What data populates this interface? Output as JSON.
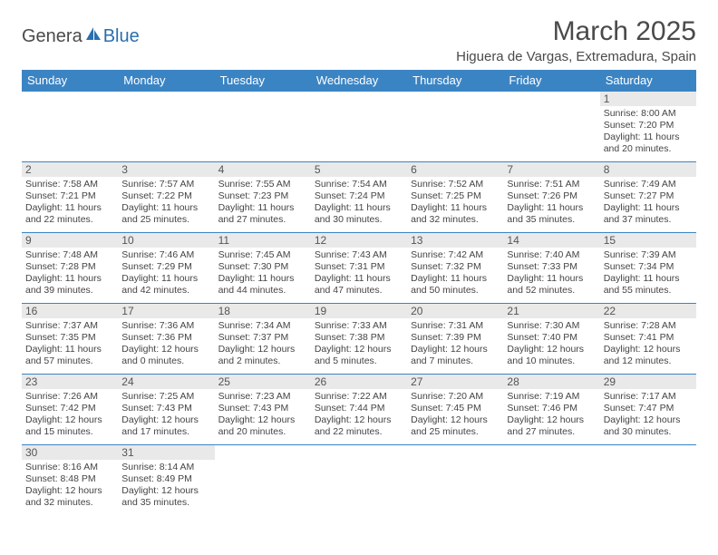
{
  "logo": {
    "part1": "Genera",
    "part2": "Blue"
  },
  "title": "March 2025",
  "location": "Higuera de Vargas, Extremadura, Spain",
  "colors": {
    "header_bg": "#3b84c4",
    "header_text": "#ffffff",
    "daynum_bg": "#e9e9e9",
    "border": "#3b84c4",
    "text": "#444444",
    "logo_gray": "#4a4a4a",
    "logo_blue": "#2a6fb0"
  },
  "day_headers": [
    "Sunday",
    "Monday",
    "Tuesday",
    "Wednesday",
    "Thursday",
    "Friday",
    "Saturday"
  ],
  "weeks": [
    [
      null,
      null,
      null,
      null,
      null,
      null,
      {
        "n": "1",
        "sr": "Sunrise: 8:00 AM",
        "ss": "Sunset: 7:20 PM",
        "dl": "Daylight: 11 hours and 20 minutes."
      }
    ],
    [
      {
        "n": "2",
        "sr": "Sunrise: 7:58 AM",
        "ss": "Sunset: 7:21 PM",
        "dl": "Daylight: 11 hours and 22 minutes."
      },
      {
        "n": "3",
        "sr": "Sunrise: 7:57 AM",
        "ss": "Sunset: 7:22 PM",
        "dl": "Daylight: 11 hours and 25 minutes."
      },
      {
        "n": "4",
        "sr": "Sunrise: 7:55 AM",
        "ss": "Sunset: 7:23 PM",
        "dl": "Daylight: 11 hours and 27 minutes."
      },
      {
        "n": "5",
        "sr": "Sunrise: 7:54 AM",
        "ss": "Sunset: 7:24 PM",
        "dl": "Daylight: 11 hours and 30 minutes."
      },
      {
        "n": "6",
        "sr": "Sunrise: 7:52 AM",
        "ss": "Sunset: 7:25 PM",
        "dl": "Daylight: 11 hours and 32 minutes."
      },
      {
        "n": "7",
        "sr": "Sunrise: 7:51 AM",
        "ss": "Sunset: 7:26 PM",
        "dl": "Daylight: 11 hours and 35 minutes."
      },
      {
        "n": "8",
        "sr": "Sunrise: 7:49 AM",
        "ss": "Sunset: 7:27 PM",
        "dl": "Daylight: 11 hours and 37 minutes."
      }
    ],
    [
      {
        "n": "9",
        "sr": "Sunrise: 7:48 AM",
        "ss": "Sunset: 7:28 PM",
        "dl": "Daylight: 11 hours and 39 minutes."
      },
      {
        "n": "10",
        "sr": "Sunrise: 7:46 AM",
        "ss": "Sunset: 7:29 PM",
        "dl": "Daylight: 11 hours and 42 minutes."
      },
      {
        "n": "11",
        "sr": "Sunrise: 7:45 AM",
        "ss": "Sunset: 7:30 PM",
        "dl": "Daylight: 11 hours and 44 minutes."
      },
      {
        "n": "12",
        "sr": "Sunrise: 7:43 AM",
        "ss": "Sunset: 7:31 PM",
        "dl": "Daylight: 11 hours and 47 minutes."
      },
      {
        "n": "13",
        "sr": "Sunrise: 7:42 AM",
        "ss": "Sunset: 7:32 PM",
        "dl": "Daylight: 11 hours and 50 minutes."
      },
      {
        "n": "14",
        "sr": "Sunrise: 7:40 AM",
        "ss": "Sunset: 7:33 PM",
        "dl": "Daylight: 11 hours and 52 minutes."
      },
      {
        "n": "15",
        "sr": "Sunrise: 7:39 AM",
        "ss": "Sunset: 7:34 PM",
        "dl": "Daylight: 11 hours and 55 minutes."
      }
    ],
    [
      {
        "n": "16",
        "sr": "Sunrise: 7:37 AM",
        "ss": "Sunset: 7:35 PM",
        "dl": "Daylight: 11 hours and 57 minutes."
      },
      {
        "n": "17",
        "sr": "Sunrise: 7:36 AM",
        "ss": "Sunset: 7:36 PM",
        "dl": "Daylight: 12 hours and 0 minutes."
      },
      {
        "n": "18",
        "sr": "Sunrise: 7:34 AM",
        "ss": "Sunset: 7:37 PM",
        "dl": "Daylight: 12 hours and 2 minutes."
      },
      {
        "n": "19",
        "sr": "Sunrise: 7:33 AM",
        "ss": "Sunset: 7:38 PM",
        "dl": "Daylight: 12 hours and 5 minutes."
      },
      {
        "n": "20",
        "sr": "Sunrise: 7:31 AM",
        "ss": "Sunset: 7:39 PM",
        "dl": "Daylight: 12 hours and 7 minutes."
      },
      {
        "n": "21",
        "sr": "Sunrise: 7:30 AM",
        "ss": "Sunset: 7:40 PM",
        "dl": "Daylight: 12 hours and 10 minutes."
      },
      {
        "n": "22",
        "sr": "Sunrise: 7:28 AM",
        "ss": "Sunset: 7:41 PM",
        "dl": "Daylight: 12 hours and 12 minutes."
      }
    ],
    [
      {
        "n": "23",
        "sr": "Sunrise: 7:26 AM",
        "ss": "Sunset: 7:42 PM",
        "dl": "Daylight: 12 hours and 15 minutes."
      },
      {
        "n": "24",
        "sr": "Sunrise: 7:25 AM",
        "ss": "Sunset: 7:43 PM",
        "dl": "Daylight: 12 hours and 17 minutes."
      },
      {
        "n": "25",
        "sr": "Sunrise: 7:23 AM",
        "ss": "Sunset: 7:43 PM",
        "dl": "Daylight: 12 hours and 20 minutes."
      },
      {
        "n": "26",
        "sr": "Sunrise: 7:22 AM",
        "ss": "Sunset: 7:44 PM",
        "dl": "Daylight: 12 hours and 22 minutes."
      },
      {
        "n": "27",
        "sr": "Sunrise: 7:20 AM",
        "ss": "Sunset: 7:45 PM",
        "dl": "Daylight: 12 hours and 25 minutes."
      },
      {
        "n": "28",
        "sr": "Sunrise: 7:19 AM",
        "ss": "Sunset: 7:46 PM",
        "dl": "Daylight: 12 hours and 27 minutes."
      },
      {
        "n": "29",
        "sr": "Sunrise: 7:17 AM",
        "ss": "Sunset: 7:47 PM",
        "dl": "Daylight: 12 hours and 30 minutes."
      }
    ],
    [
      {
        "n": "30",
        "sr": "Sunrise: 8:16 AM",
        "ss": "Sunset: 8:48 PM",
        "dl": "Daylight: 12 hours and 32 minutes."
      },
      {
        "n": "31",
        "sr": "Sunrise: 8:14 AM",
        "ss": "Sunset: 8:49 PM",
        "dl": "Daylight: 12 hours and 35 minutes."
      },
      null,
      null,
      null,
      null,
      null
    ]
  ]
}
